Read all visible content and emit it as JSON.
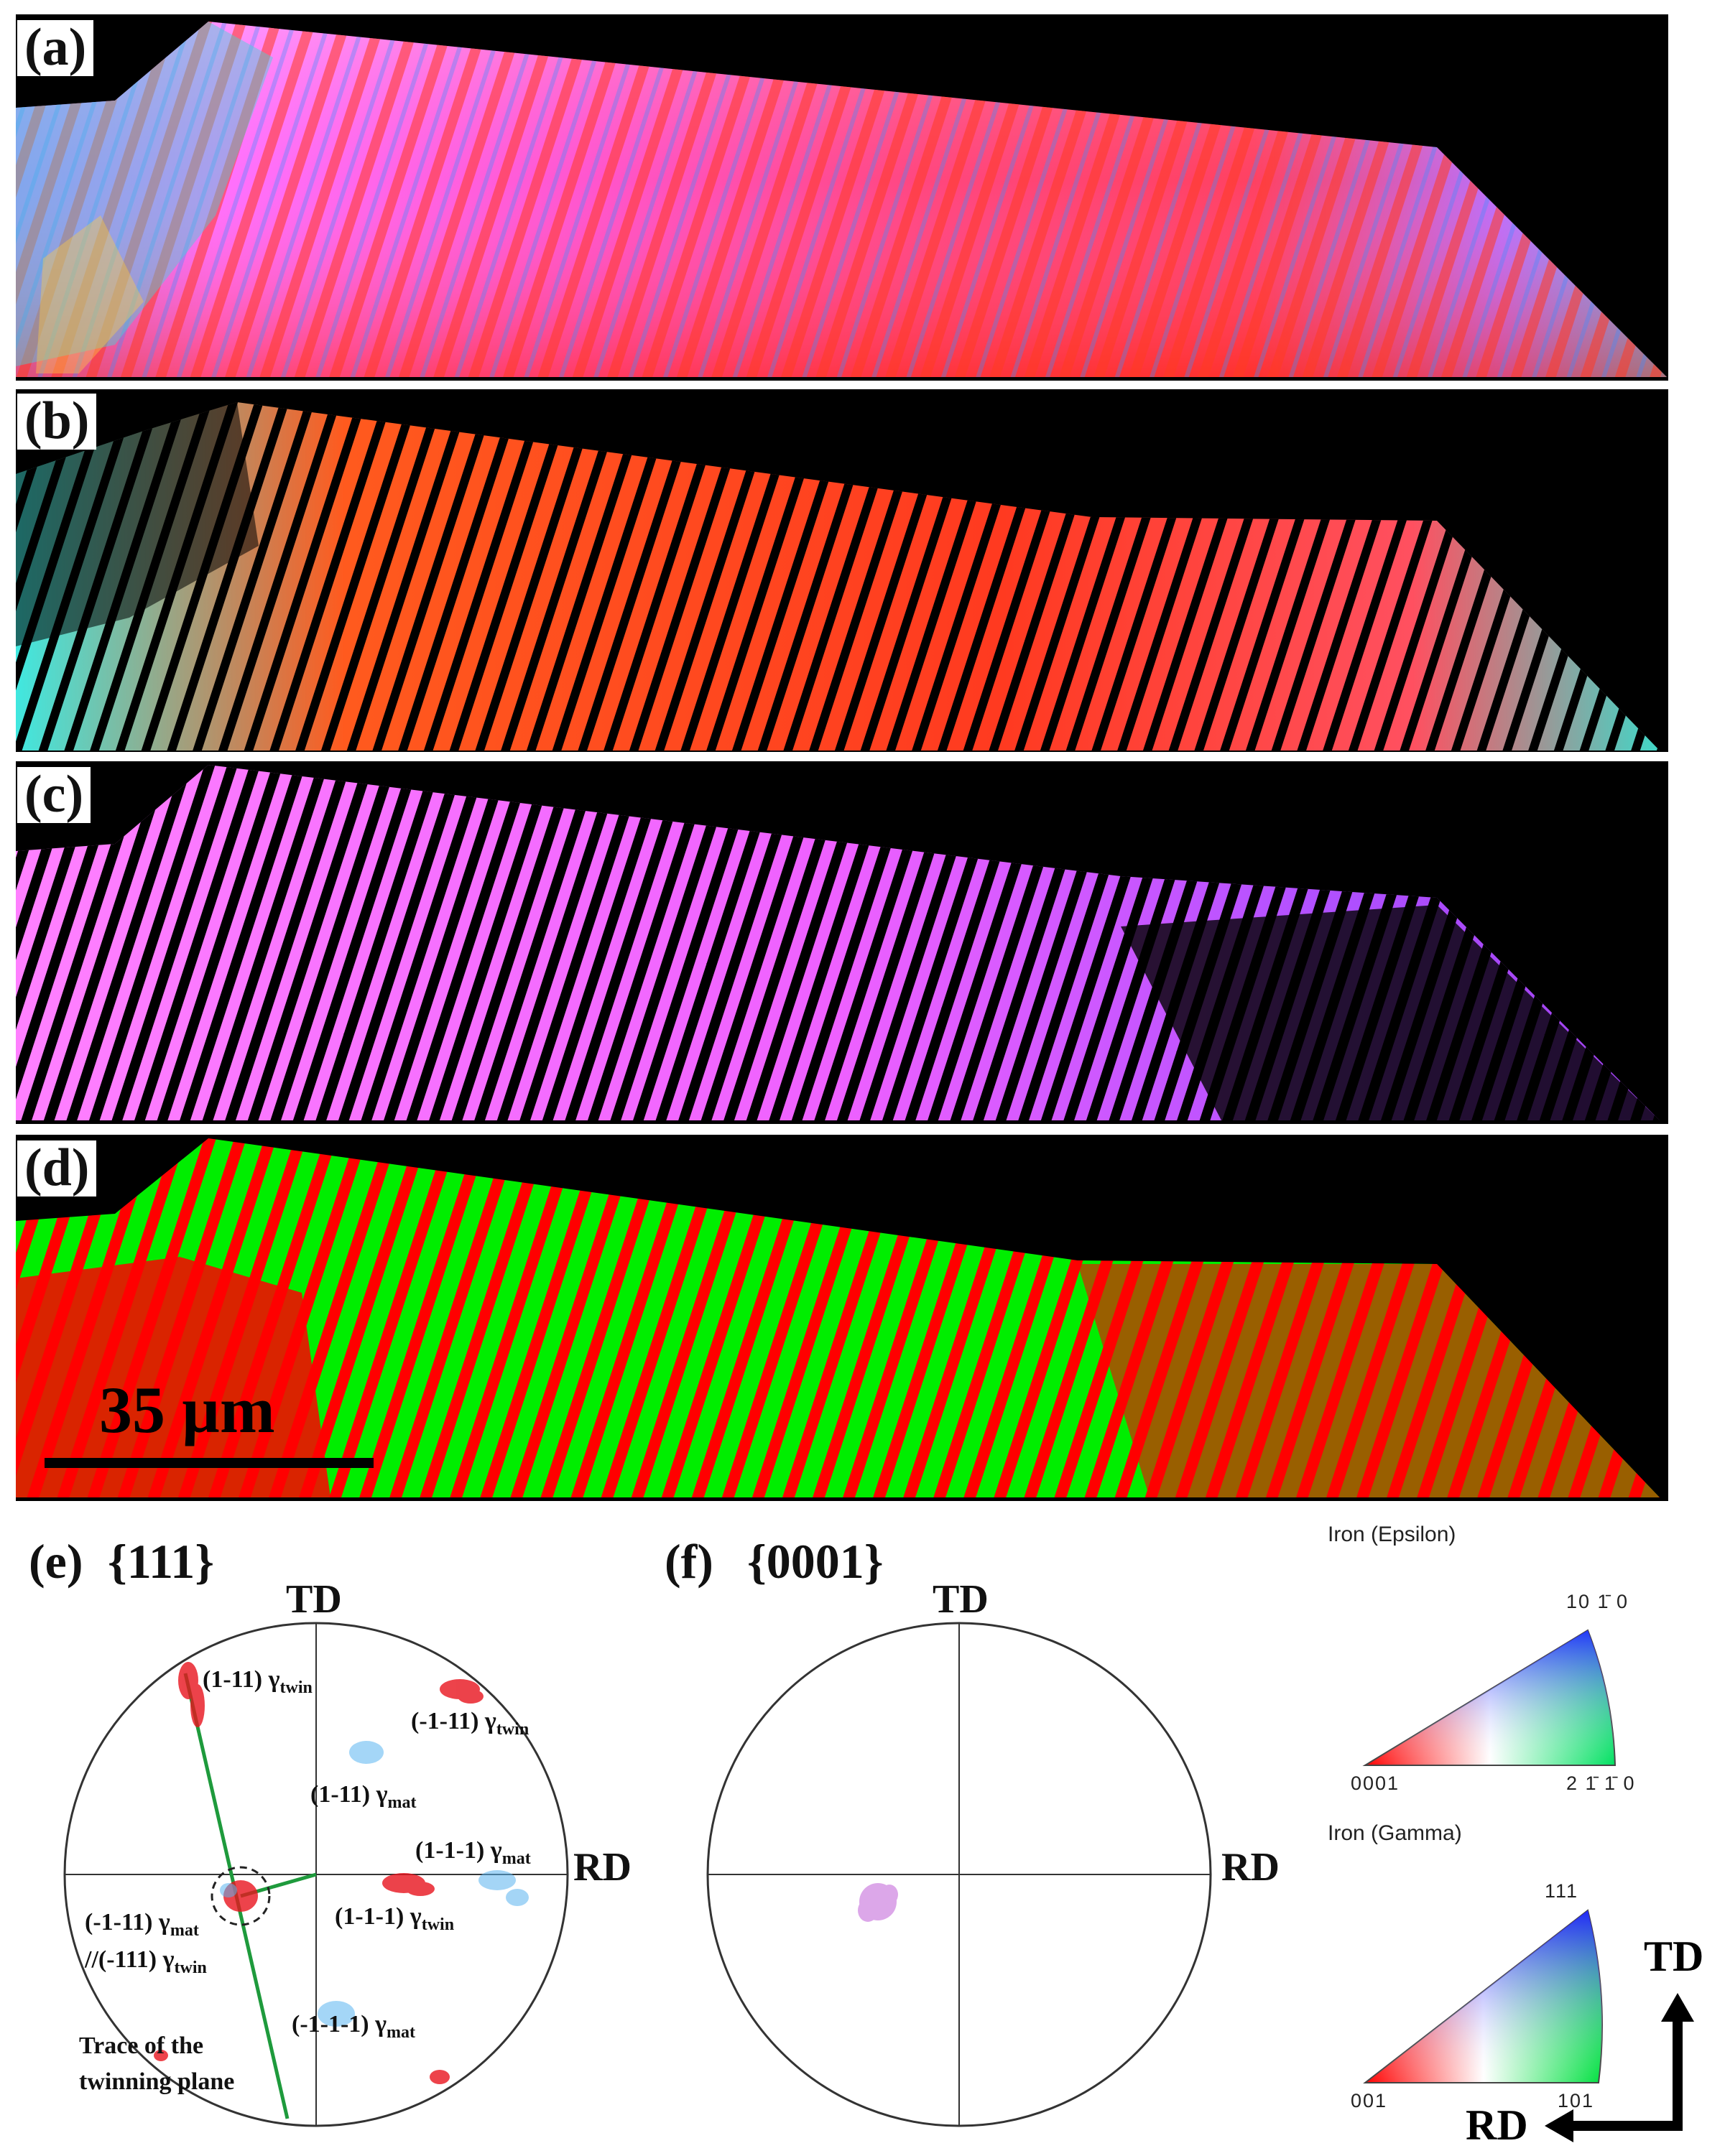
{
  "panels": {
    "a": "(a)",
    "b": "(b)",
    "c": "(c)",
    "d": "(d)"
  },
  "scale_bar": {
    "label": "35 µm"
  },
  "pole_figures": {
    "e": {
      "label": "(e)",
      "family": "{111}",
      "td": "TD",
      "rd": "RD",
      "annotations": {
        "twin_1": {
          "main": "(1-11) γ",
          "sub": "twin"
        },
        "twin_2": {
          "main": "(-1-11) γ",
          "sub": "twin"
        },
        "mat_1": {
          "main": "(1-11) γ",
          "sub": "mat"
        },
        "mat_2": {
          "main": "(1-1-1) γ",
          "sub": "mat"
        },
        "mat_3_line1": {
          "main": "(-1-11) γ",
          "sub": "mat"
        },
        "mat_3_line2": {
          "main": "//(-111) γ",
          "sub": "twin"
        },
        "twin_3": {
          "main": "(1-1-1) γ",
          "sub": "twin"
        },
        "mat_4": {
          "main": "(-1-1-1) γ",
          "sub": "mat"
        },
        "trace_line1": "Trace of the",
        "trace_line2": "twinning plane"
      }
    },
    "f": {
      "label": "(f)",
      "family": "{0001}",
      "td": "TD",
      "rd": "RD"
    }
  },
  "legends": {
    "epsilon": {
      "title": "Iron (Epsilon)",
      "top": "10 1̄ 0",
      "left": "0001",
      "right": "2 1̄ 1̄ 0"
    },
    "gamma": {
      "title": "Iron (Gamma)",
      "top": "111",
      "left": "001",
      "right": "101"
    }
  },
  "directions": {
    "td": "TD",
    "rd": "RD"
  },
  "colors": {
    "red": "#ff0000",
    "green": "#00ee00",
    "pink": "#ff66ff",
    "purple": "#c050ff",
    "cyan": "#40e8e0",
    "orange": "#ff5a1e",
    "blue": "#3c8cff",
    "twin_points": "#e8141e",
    "mat_points": "#5ab4f0",
    "eps_points": "#c060d8",
    "trace_line": "#1e9a3c"
  }
}
